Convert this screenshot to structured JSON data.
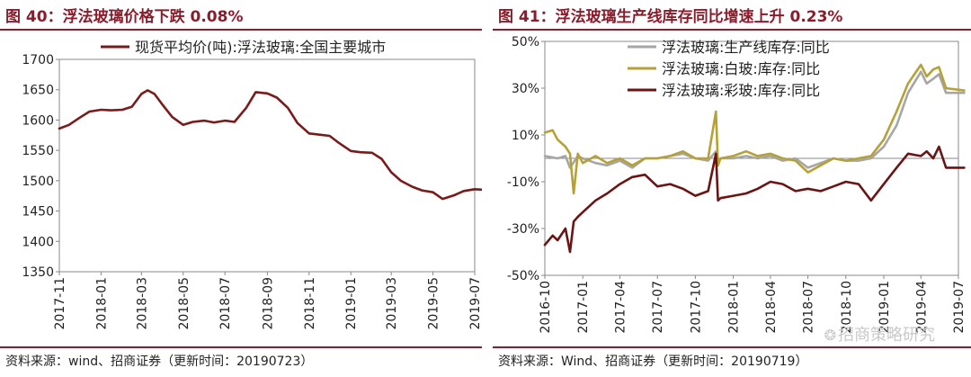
{
  "left_panel": {
    "fig_title": "图 40：浮法玻璃价格下跌 0.08%",
    "source": "资料来源：wind、招商证券（更新时间：20190723）"
  },
  "right_panel": {
    "fig_title": "图 41：浮法玻璃生产线库存同比增速上升 0.23%",
    "source": "资料来源：Wind、招商证券（更新时间：20190719）",
    "watermark": "招商策略研究"
  },
  "chart_data": [
    {
      "type": "line",
      "title": "",
      "xlabel": "",
      "ylabel": "",
      "ylim": [
        1350,
        1700
      ],
      "yticks": [
        1350,
        1400,
        1450,
        1500,
        1550,
        1600,
        1650,
        1700
      ],
      "xlim": [
        "2017-11",
        "2019-07"
      ],
      "xticks": [
        "2017-11",
        "2018-01",
        "2018-03",
        "2018-05",
        "2018-07",
        "2018-09",
        "2018-11",
        "2019-01",
        "2019-03",
        "2019-05",
        "2019-07"
      ],
      "grid": false,
      "legend_position": "top-center",
      "series": [
        {
          "name": "现货平均价(吨):浮法玻璃:全国主要城市",
          "color": "#7b1a1a",
          "points": [
            [
              "2017-11-01",
              1586
            ],
            [
              "2017-11-15",
              1592
            ],
            [
              "2017-12-01",
              1604
            ],
            [
              "2017-12-15",
              1614
            ],
            [
              "2018-01-01",
              1617
            ],
            [
              "2018-01-15",
              1616
            ],
            [
              "2018-02-01",
              1617
            ],
            [
              "2018-02-15",
              1622
            ],
            [
              "2018-03-01",
              1643
            ],
            [
              "2018-03-10",
              1649
            ],
            [
              "2018-03-20",
              1643
            ],
            [
              "2018-04-01",
              1625
            ],
            [
              "2018-04-15",
              1605
            ],
            [
              "2018-05-01",
              1592
            ],
            [
              "2018-05-15",
              1597
            ],
            [
              "2018-06-01",
              1599
            ],
            [
              "2018-06-15",
              1596
            ],
            [
              "2018-07-01",
              1599
            ],
            [
              "2018-07-15",
              1597
            ],
            [
              "2018-08-01",
              1620
            ],
            [
              "2018-08-15",
              1646
            ],
            [
              "2018-09-01",
              1644
            ],
            [
              "2018-09-15",
              1637
            ],
            [
              "2018-10-01",
              1620
            ],
            [
              "2018-10-15",
              1595
            ],
            [
              "2018-11-01",
              1578
            ],
            [
              "2018-11-15",
              1576
            ],
            [
              "2018-12-01",
              1574
            ],
            [
              "2018-12-15",
              1562
            ],
            [
              "2019-01-01",
              1549
            ],
            [
              "2019-01-15",
              1547
            ],
            [
              "2019-02-01",
              1546
            ],
            [
              "2019-02-15",
              1536
            ],
            [
              "2019-03-01",
              1514
            ],
            [
              "2019-03-15",
              1500
            ],
            [
              "2019-04-01",
              1490
            ],
            [
              "2019-04-15",
              1484
            ],
            [
              "2019-05-01",
              1481
            ],
            [
              "2019-05-15",
              1470
            ],
            [
              "2019-06-01",
              1476
            ],
            [
              "2019-06-15",
              1483
            ],
            [
              "2019-07-01",
              1486
            ],
            [
              "2019-07-15",
              1485
            ]
          ]
        }
      ]
    },
    {
      "type": "line",
      "title": "",
      "xlabel": "",
      "ylabel": "",
      "ylim": [
        -50,
        50
      ],
      "yticks": [
        -50,
        -30,
        -10,
        10,
        30,
        50
      ],
      "ytick_labels": [
        "-50%",
        "-30%",
        "-10%",
        "10%",
        "30%",
        "50%"
      ],
      "reference_line": 0,
      "xlim": [
        "2016-10",
        "2019-07"
      ],
      "xticks": [
        "2016-10",
        "2017-01",
        "2017-04",
        "2017-07",
        "2017-10",
        "2018-01",
        "2018-04",
        "2018-07",
        "2018-10",
        "2019-01",
        "2019-04",
        "2019-07"
      ],
      "grid": false,
      "legend_position": "top-left",
      "series": [
        {
          "name": "浮法玻璃:生产线库存:同比",
          "color": "#a6a6a6",
          "points": [
            [
              "2016-10-01",
              1
            ],
            [
              "2016-11-01",
              0
            ],
            [
              "2016-11-20",
              1
            ],
            [
              "2016-12-01",
              -4
            ],
            [
              "2016-12-20",
              1
            ],
            [
              "2017-01-01",
              0
            ],
            [
              "2017-02-01",
              -2
            ],
            [
              "2017-03-01",
              -3
            ],
            [
              "2017-04-01",
              -1
            ],
            [
              "2017-05-01",
              -4
            ],
            [
              "2017-06-01",
              0
            ],
            [
              "2017-07-01",
              0
            ],
            [
              "2017-08-01",
              1
            ],
            [
              "2017-09-01",
              2
            ],
            [
              "2017-10-01",
              0
            ],
            [
              "2017-11-01",
              -1
            ],
            [
              "2017-11-20",
              3
            ],
            [
              "2017-11-25",
              -2
            ],
            [
              "2017-12-01",
              0
            ],
            [
              "2018-01-01",
              0
            ],
            [
              "2018-02-01",
              1
            ],
            [
              "2018-03-01",
              0
            ],
            [
              "2018-04-01",
              1
            ],
            [
              "2018-05-01",
              -1
            ],
            [
              "2018-06-01",
              0
            ],
            [
              "2018-07-01",
              -4
            ],
            [
              "2018-08-01",
              -2
            ],
            [
              "2018-09-01",
              0
            ],
            [
              "2018-10-01",
              -1
            ],
            [
              "2018-11-01",
              -1
            ],
            [
              "2018-12-01",
              0
            ],
            [
              "2019-01-01",
              5
            ],
            [
              "2019-02-01",
              14
            ],
            [
              "2019-03-01",
              28
            ],
            [
              "2019-04-01",
              37
            ],
            [
              "2019-04-15",
              32
            ],
            [
              "2019-05-01",
              34
            ],
            [
              "2019-05-15",
              36
            ],
            [
              "2019-06-01",
              28
            ],
            [
              "2019-07-15",
              28
            ]
          ]
        },
        {
          "name": "浮法玻璃:白玻:库存:同比",
          "color": "#b5a135",
          "points": [
            [
              "2016-10-01",
              11
            ],
            [
              "2016-10-20",
              12
            ],
            [
              "2016-11-01",
              8
            ],
            [
              "2016-11-20",
              5
            ],
            [
              "2016-12-01",
              2
            ],
            [
              "2016-12-10",
              -15
            ],
            [
              "2016-12-20",
              2
            ],
            [
              "2017-01-01",
              -2
            ],
            [
              "2017-02-01",
              1
            ],
            [
              "2017-03-01",
              -2
            ],
            [
              "2017-04-01",
              0
            ],
            [
              "2017-05-01",
              -3
            ],
            [
              "2017-06-01",
              0
            ],
            [
              "2017-07-01",
              0
            ],
            [
              "2017-08-01",
              1
            ],
            [
              "2017-09-01",
              3
            ],
            [
              "2017-10-01",
              0
            ],
            [
              "2017-11-01",
              0
            ],
            [
              "2017-11-20",
              20
            ],
            [
              "2017-11-25",
              -3
            ],
            [
              "2017-12-01",
              0
            ],
            [
              "2018-01-01",
              1
            ],
            [
              "2018-02-01",
              3
            ],
            [
              "2018-03-01",
              1
            ],
            [
              "2018-04-01",
              2
            ],
            [
              "2018-05-01",
              0
            ],
            [
              "2018-06-01",
              -1
            ],
            [
              "2018-07-01",
              -6
            ],
            [
              "2018-08-01",
              -3
            ],
            [
              "2018-09-01",
              0
            ],
            [
              "2018-10-01",
              -1
            ],
            [
              "2018-11-01",
              0
            ],
            [
              "2018-12-01",
              1
            ],
            [
              "2019-01-01",
              8
            ],
            [
              "2019-02-01",
              20
            ],
            [
              "2019-03-01",
              32
            ],
            [
              "2019-04-01",
              40
            ],
            [
              "2019-04-15",
              35
            ],
            [
              "2019-05-01",
              38
            ],
            [
              "2019-05-15",
              39
            ],
            [
              "2019-06-01",
              30
            ],
            [
              "2019-07-15",
              29
            ]
          ]
        },
        {
          "name": "浮法玻璃:彩玻:库存:同比",
          "color": "#6b1414",
          "points": [
            [
              "2016-10-01",
              -37
            ],
            [
              "2016-10-20",
              -33
            ],
            [
              "2016-11-01",
              -35
            ],
            [
              "2016-11-20",
              -30
            ],
            [
              "2016-12-01",
              -40
            ],
            [
              "2016-12-10",
              -27
            ],
            [
              "2016-12-20",
              -25
            ],
            [
              "2017-01-01",
              -23
            ],
            [
              "2017-02-01",
              -18
            ],
            [
              "2017-03-01",
              -15
            ],
            [
              "2017-04-01",
              -11
            ],
            [
              "2017-05-01",
              -8
            ],
            [
              "2017-06-01",
              -7
            ],
            [
              "2017-07-01",
              -12
            ],
            [
              "2017-08-01",
              -11
            ],
            [
              "2017-09-01",
              -13
            ],
            [
              "2017-10-01",
              -16
            ],
            [
              "2017-11-01",
              -14
            ],
            [
              "2017-11-20",
              2
            ],
            [
              "2017-11-25",
              -18
            ],
            [
              "2017-12-01",
              -17
            ],
            [
              "2018-01-01",
              -16
            ],
            [
              "2018-02-01",
              -15
            ],
            [
              "2018-03-01",
              -13
            ],
            [
              "2018-04-01",
              -10
            ],
            [
              "2018-05-01",
              -11
            ],
            [
              "2018-06-01",
              -14
            ],
            [
              "2018-07-01",
              -13
            ],
            [
              "2018-08-01",
              -14
            ],
            [
              "2018-09-01",
              -12
            ],
            [
              "2018-10-01",
              -10
            ],
            [
              "2018-11-01",
              -11
            ],
            [
              "2018-12-01",
              -18
            ],
            [
              "2019-01-01",
              -11
            ],
            [
              "2019-02-01",
              -4
            ],
            [
              "2019-03-01",
              2
            ],
            [
              "2019-04-01",
              1
            ],
            [
              "2019-04-15",
              3
            ],
            [
              "2019-05-01",
              0
            ],
            [
              "2019-05-15",
              5
            ],
            [
              "2019-06-01",
              -4
            ],
            [
              "2019-07-15",
              -4
            ]
          ]
        }
      ]
    }
  ]
}
